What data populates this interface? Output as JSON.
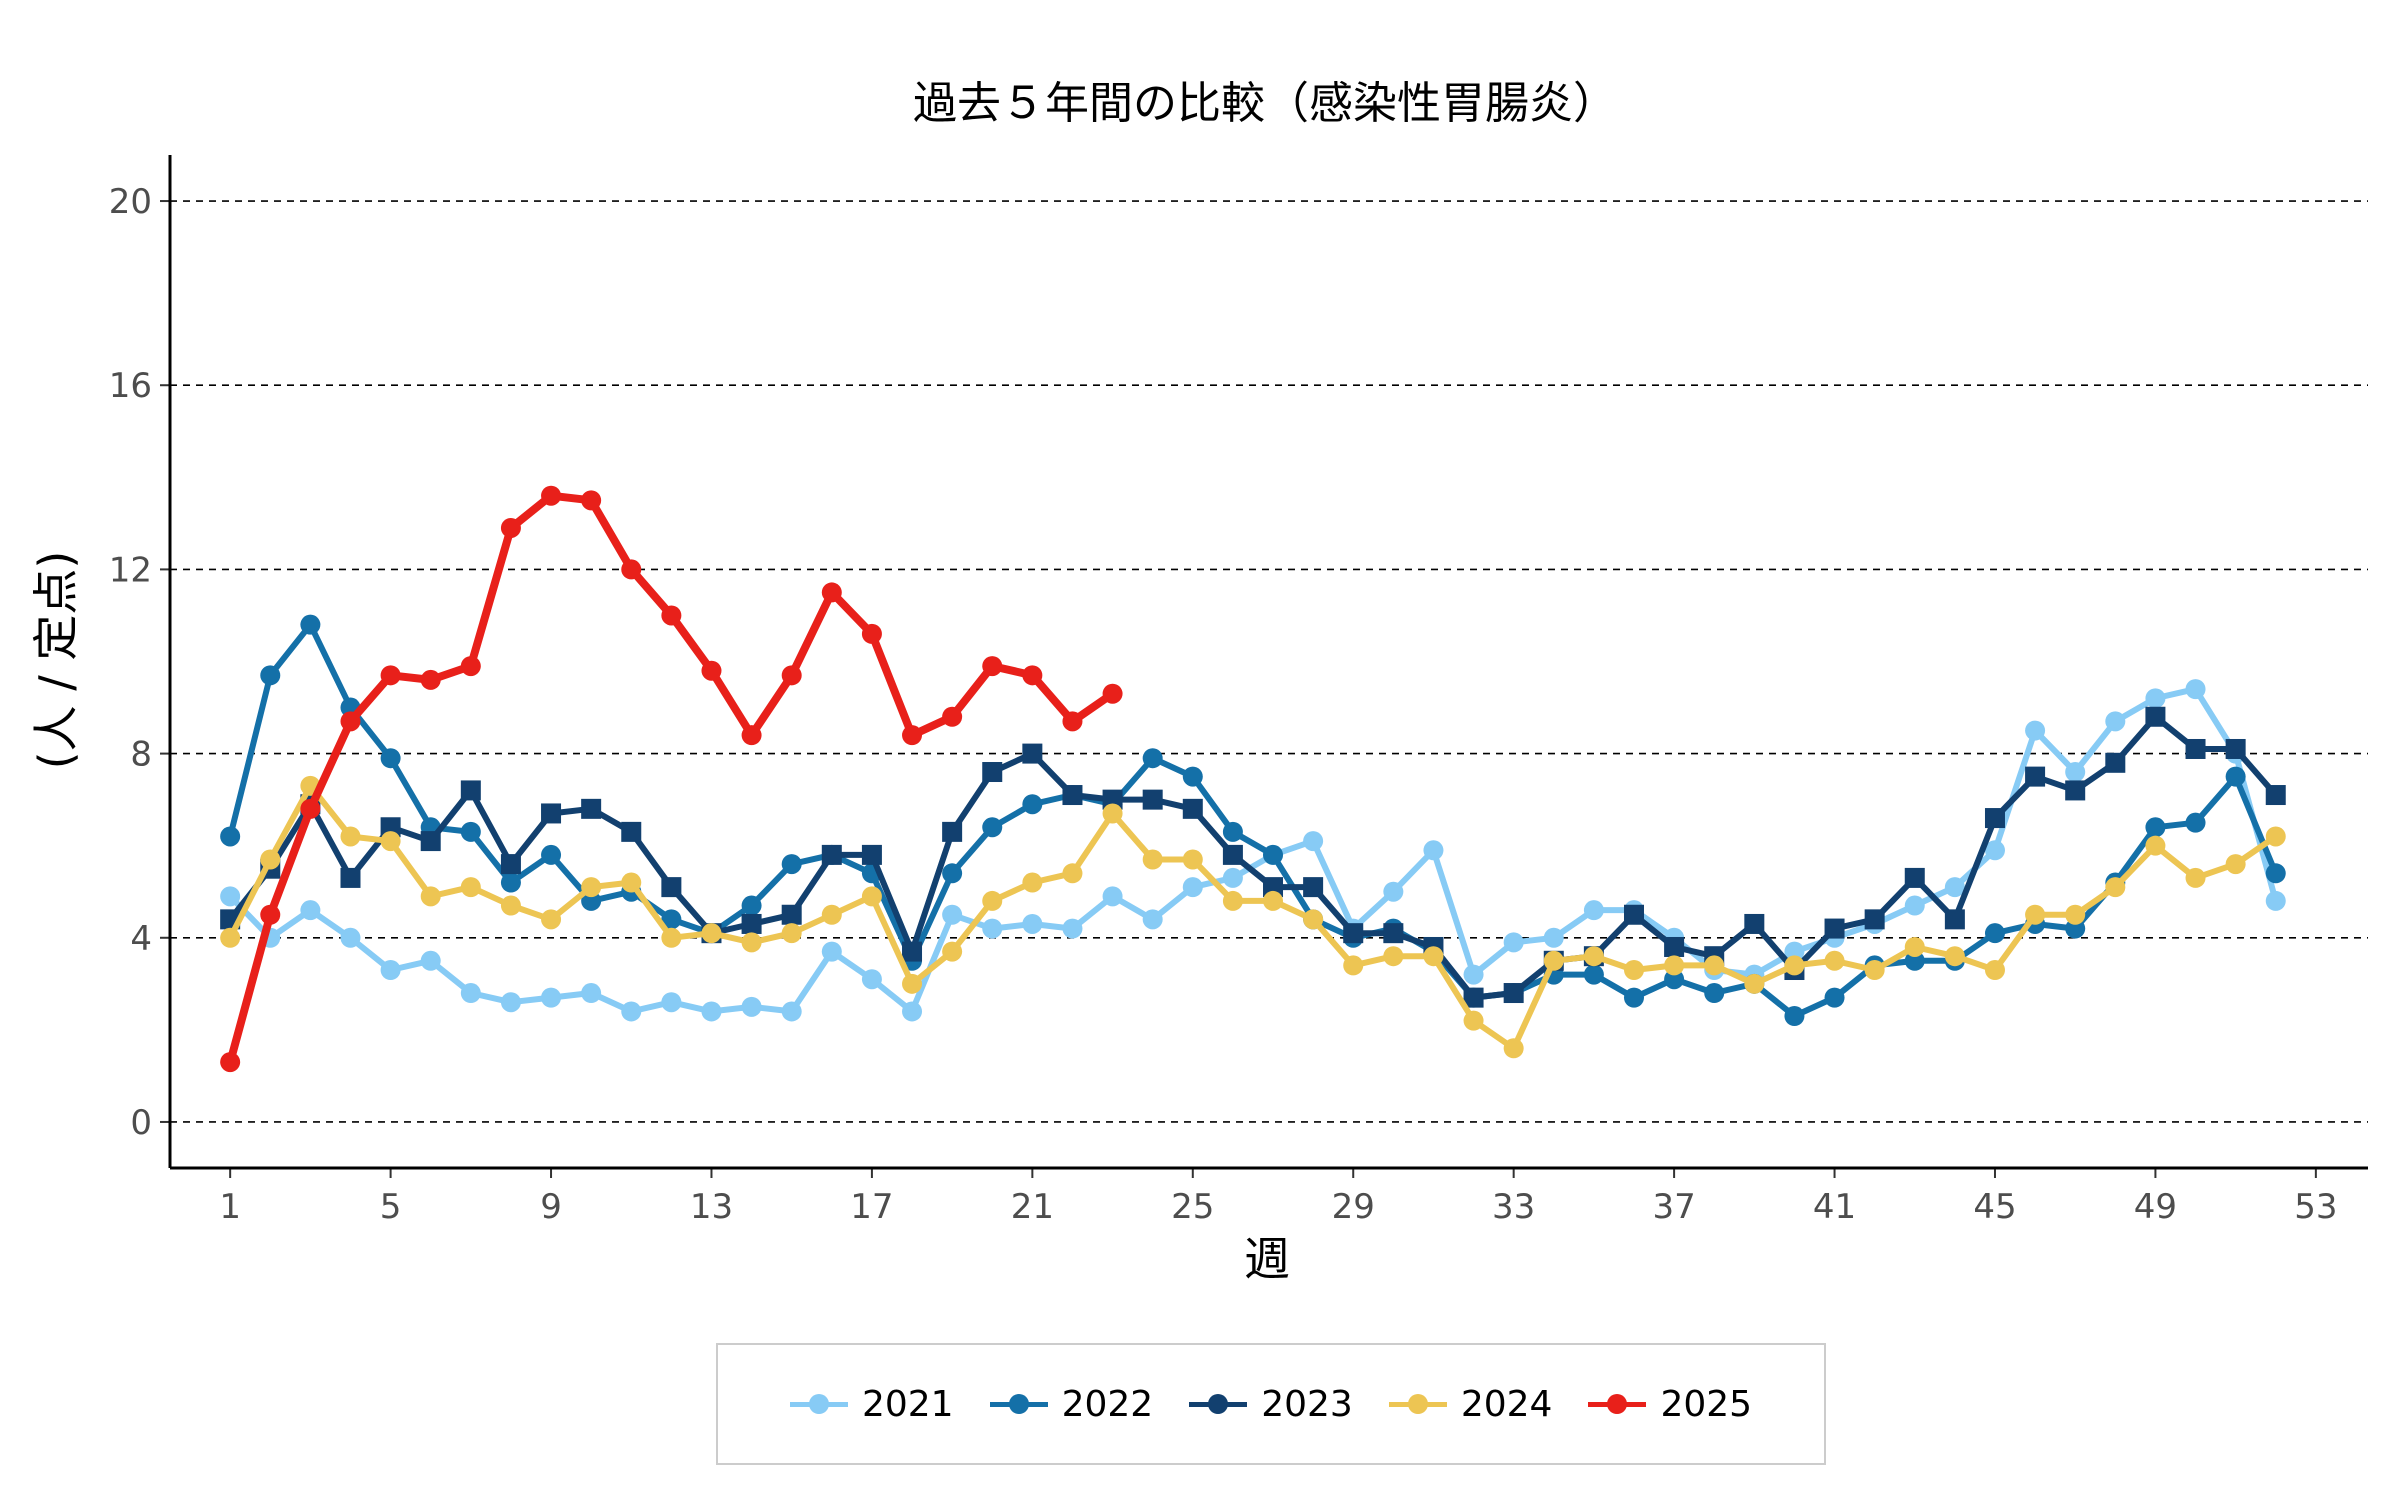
{
  "chart_data": {
    "type": "line",
    "title": "過去５年間の比較（感染性胃腸炎）",
    "xlabel": "週",
    "ylabel": "(人 / 定点)",
    "xlim": [
      -0.5,
      54.3
    ],
    "ylim": [
      -1,
      21
    ],
    "x_ticks": [
      1,
      5,
      9,
      13,
      17,
      21,
      25,
      29,
      33,
      37,
      41,
      45,
      49,
      53
    ],
    "y_ticks": [
      0,
      4,
      8,
      12,
      16,
      20
    ],
    "grid": "horizontal dashed",
    "legend_position": "bottom",
    "series": [
      {
        "name": "2021",
        "color": "#87CBF5",
        "marker": "circle",
        "x": [
          1,
          2,
          3,
          4,
          5,
          6,
          7,
          8,
          9,
          10,
          11,
          12,
          13,
          14,
          15,
          16,
          17,
          18,
          19,
          20,
          21,
          22,
          23,
          24,
          25,
          26,
          27,
          28,
          29,
          30,
          31,
          32,
          33,
          34,
          35,
          36,
          37,
          38,
          39,
          40,
          41,
          42,
          43,
          44,
          45,
          46,
          47,
          48,
          49,
          50,
          51,
          52
        ],
        "values": [
          4.9,
          4.0,
          4.6,
          4.0,
          3.3,
          3.5,
          2.8,
          2.6,
          2.7,
          2.8,
          2.4,
          2.6,
          2.4,
          2.5,
          2.4,
          3.7,
          3.1,
          2.4,
          4.5,
          4.2,
          4.3,
          4.2,
          4.9,
          4.4,
          5.1,
          5.3,
          5.8,
          6.1,
          4.2,
          5.0,
          5.9,
          3.2,
          3.9,
          4.0,
          4.6,
          4.6,
          4.0,
          3.3,
          3.2,
          3.7,
          4.0,
          4.3,
          4.7,
          5.1,
          5.9,
          8.5,
          7.6,
          8.7,
          9.2,
          9.4,
          8.0,
          4.8
        ]
      },
      {
        "name": "2022",
        "color": "#1470A8",
        "marker": "circle",
        "x": [
          1,
          2,
          3,
          4,
          5,
          6,
          7,
          8,
          9,
          10,
          11,
          12,
          13,
          14,
          15,
          16,
          17,
          18,
          19,
          20,
          21,
          22,
          23,
          24,
          25,
          26,
          27,
          28,
          29,
          30,
          31,
          32,
          33,
          34,
          35,
          36,
          37,
          38,
          39,
          40,
          41,
          42,
          43,
          44,
          45,
          46,
          47,
          48,
          49,
          50,
          51,
          52
        ],
        "values": [
          6.2,
          9.7,
          10.8,
          9.0,
          7.9,
          6.4,
          6.3,
          5.2,
          5.8,
          4.8,
          5.0,
          4.4,
          4.1,
          4.7,
          5.6,
          5.8,
          5.4,
          3.5,
          5.4,
          6.4,
          6.9,
          7.1,
          6.9,
          7.9,
          7.5,
          6.3,
          5.8,
          4.4,
          4.0,
          4.2,
          3.7,
          2.7,
          2.8,
          3.2,
          3.2,
          2.7,
          3.1,
          2.8,
          3.0,
          2.3,
          2.7,
          3.4,
          3.5,
          3.5,
          4.1,
          4.3,
          4.2,
          5.2,
          6.4,
          6.5,
          7.5,
          5.4
        ]
      },
      {
        "name": "2023",
        "color": "#12406F",
        "marker": "square",
        "x": [
          1,
          2,
          3,
          4,
          5,
          6,
          7,
          8,
          9,
          10,
          11,
          12,
          13,
          14,
          15,
          16,
          17,
          18,
          19,
          20,
          21,
          22,
          23,
          24,
          25,
          26,
          27,
          28,
          29,
          30,
          31,
          32,
          33,
          34,
          35,
          36,
          37,
          38,
          39,
          40,
          41,
          42,
          43,
          44,
          45,
          46,
          47,
          48,
          49,
          50,
          51,
          52
        ],
        "values": [
          4.4,
          5.5,
          6.9,
          5.3,
          6.4,
          6.1,
          7.2,
          5.6,
          6.7,
          6.8,
          6.3,
          5.1,
          4.1,
          4.3,
          4.5,
          5.8,
          5.8,
          3.7,
          6.3,
          7.6,
          8.0,
          7.1,
          7.0,
          7.0,
          6.8,
          5.8,
          5.1,
          5.1,
          4.1,
          4.1,
          3.8,
          2.7,
          2.8,
          3.5,
          3.6,
          4.5,
          3.8,
          3.6,
          4.3,
          3.3,
          4.2,
          4.4,
          5.3,
          4.4,
          6.6,
          7.5,
          7.2,
          7.8,
          8.8,
          8.1,
          8.1,
          7.1
        ]
      },
      {
        "name": "2024",
        "color": "#EDC553",
        "marker": "circle",
        "x": [
          1,
          2,
          3,
          4,
          5,
          6,
          7,
          8,
          9,
          10,
          11,
          12,
          13,
          14,
          15,
          16,
          17,
          18,
          19,
          20,
          21,
          22,
          23,
          24,
          25,
          26,
          27,
          28,
          29,
          30,
          31,
          32,
          33,
          34,
          35,
          36,
          37,
          38,
          39,
          40,
          41,
          42,
          43,
          44,
          45,
          46,
          47,
          48,
          49,
          50,
          51,
          52
        ],
        "values": [
          4.0,
          5.7,
          7.3,
          6.2,
          6.1,
          4.9,
          5.1,
          4.7,
          4.4,
          5.1,
          5.2,
          4.0,
          4.1,
          3.9,
          4.1,
          4.5,
          4.9,
          3.0,
          3.7,
          4.8,
          5.2,
          5.4,
          6.7,
          5.7,
          5.7,
          4.8,
          4.8,
          4.4,
          3.4,
          3.6,
          3.6,
          2.2,
          1.6,
          3.5,
          3.6,
          3.3,
          3.4,
          3.4,
          3.0,
          3.4,
          3.5,
          3.3,
          3.8,
          3.6,
          3.3,
          4.5,
          4.5,
          5.1,
          6.0,
          5.3,
          5.6,
          6.2
        ]
      },
      {
        "name": "2025",
        "color": "#E8201A",
        "marker": "circle",
        "x": [
          1,
          2,
          3,
          4,
          5,
          6,
          7,
          8,
          9,
          10,
          11,
          12,
          13,
          14,
          15,
          16,
          17,
          18,
          19,
          20,
          21,
          22,
          23
        ],
        "values": [
          1.3,
          4.5,
          6.8,
          8.7,
          9.7,
          9.6,
          9.9,
          12.9,
          13.6,
          13.5,
          12.0,
          11.0,
          9.8,
          8.4,
          9.7,
          11.5,
          10.6,
          8.4,
          8.8,
          9.9,
          9.7,
          8.7,
          9.3
        ]
      }
    ]
  }
}
